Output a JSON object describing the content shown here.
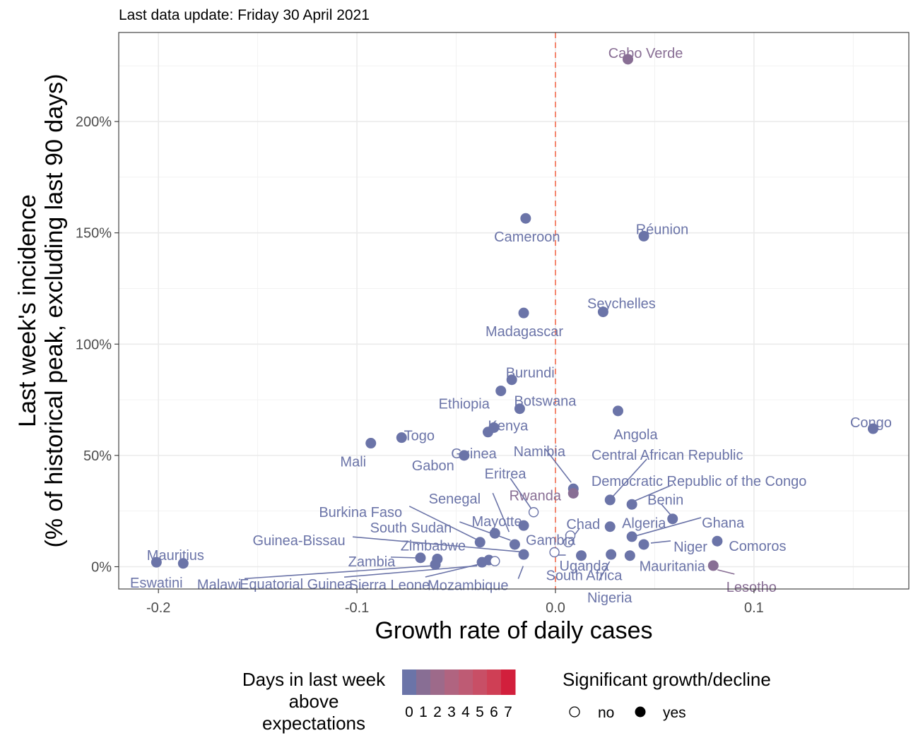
{
  "subtitle": "Last data update: Friday 30 April 2021",
  "chart_data": {
    "type": "scatter",
    "title": "",
    "xlabel": "Growth rate of daily cases",
    "ylabel_line1": "Last week's incidence",
    "ylabel_line2": "(% of historical peak, excluding last 90 days)",
    "xlim": [
      -0.22,
      0.178
    ],
    "ylim": [
      -0.1,
      2.4
    ],
    "x_ticks": [
      -0.2,
      -0.1,
      0.0,
      0.1
    ],
    "x_tick_labels": [
      "-0.2",
      "-0.1",
      "0.0",
      "0.1"
    ],
    "y_ticks": [
      0,
      0.5,
      1.0,
      1.5,
      2.0
    ],
    "y_tick_labels": [
      "0%",
      "50%",
      "100%",
      "150%",
      "200%"
    ],
    "reference_line_x": 0,
    "reference_line_color": "#f4866f",
    "grid": true,
    "colors": {
      "days0": "#6b74a8",
      "days1": "#886e94",
      "point_outline": "#6b74a8"
    },
    "points": [
      {
        "label": "Cabo Verde",
        "x": 0.0365,
        "y": 2.28,
        "days": 1,
        "significant": true
      },
      {
        "label": "Cameroon",
        "x": -0.015,
        "y": 1.565,
        "days": 0,
        "significant": true
      },
      {
        "label": "Réunion",
        "x": 0.0445,
        "y": 1.485,
        "days": 0,
        "significant": true
      },
      {
        "label": "Seychelles",
        "x": 0.024,
        "y": 1.145,
        "days": 0,
        "significant": true
      },
      {
        "label": "Madagascar",
        "x": -0.016,
        "y": 1.14,
        "days": 0,
        "significant": true
      },
      {
        "label": "Burundi",
        "x": -0.022,
        "y": 0.84,
        "days": 0,
        "significant": true
      },
      {
        "label": "Ethiopia",
        "x": -0.0275,
        "y": 0.79,
        "days": 0,
        "significant": true
      },
      {
        "label": "Botswana",
        "x": -0.018,
        "y": 0.71,
        "days": 0,
        "significant": true
      },
      {
        "label": "Angola",
        "x": 0.0315,
        "y": 0.7,
        "days": 0,
        "significant": true
      },
      {
        "label": "Congo",
        "x": 0.16,
        "y": 0.62,
        "days": 0,
        "significant": true
      },
      {
        "label": "Kenya",
        "x": -0.031,
        "y": 0.625,
        "days": 0,
        "significant": true
      },
      {
        "label": "Guinea",
        "x": -0.034,
        "y": 0.605,
        "days": 0,
        "significant": true
      },
      {
        "label": "Togo",
        "x": -0.0775,
        "y": 0.58,
        "days": 0,
        "significant": true
      },
      {
        "label": "Mali",
        "x": -0.093,
        "y": 0.555,
        "days": 0,
        "significant": true
      },
      {
        "label": "Gabon",
        "x": -0.046,
        "y": 0.5,
        "days": 0,
        "significant": true
      },
      {
        "label": "Namibia",
        "x": 0.009,
        "y": 0.35,
        "days": 0,
        "significant": true
      },
      {
        "label": "Rwanda",
        "x": 0.009,
        "y": 0.33,
        "days": 1,
        "significant": true
      },
      {
        "label": "Central African Republic",
        "x": 0.0275,
        "y": 0.3,
        "days": 0,
        "significant": true
      },
      {
        "label": "Democratic Republic of the Congo",
        "x": 0.0385,
        "y": 0.28,
        "days": 0,
        "significant": true
      },
      {
        "label": "Eritrea",
        "x": -0.011,
        "y": 0.245,
        "days": 0,
        "significant": false
      },
      {
        "label": "Benin",
        "x": 0.059,
        "y": 0.215,
        "days": 0,
        "significant": true
      },
      {
        "label": "Mayotte",
        "x": -0.016,
        "y": 0.185,
        "days": 0,
        "significant": true
      },
      {
        "label": "Algeria",
        "x": 0.0275,
        "y": 0.18,
        "days": 0,
        "significant": true
      },
      {
        "label": "Senegal",
        "x": -0.0305,
        "y": 0.15,
        "days": 0,
        "significant": true
      },
      {
        "label": "Gambia",
        "x": 0.0075,
        "y": 0.14,
        "days": 0,
        "significant": false
      },
      {
        "label": "Ghana",
        "x": 0.0385,
        "y": 0.135,
        "days": 0,
        "significant": true
      },
      {
        "label": "Chad",
        "x": 0.0065,
        "y": 0.11,
        "days": 0,
        "significant": false
      },
      {
        "label": "Comoros",
        "x": 0.0815,
        "y": 0.115,
        "days": 0,
        "significant": true
      },
      {
        "label": "Burkina Faso",
        "x": -0.038,
        "y": 0.11,
        "days": 0,
        "significant": true
      },
      {
        "label": "Niger",
        "x": 0.0445,
        "y": 0.1,
        "days": 0,
        "significant": true
      },
      {
        "label": "South Sudan",
        "x": -0.0205,
        "y": 0.1,
        "days": 0,
        "significant": true
      },
      {
        "label": "Uganda",
        "x": -0.0005,
        "y": 0.065,
        "days": 0,
        "significant": false
      },
      {
        "label": "Guinea-Bissau",
        "x": -0.016,
        "y": 0.055,
        "days": 0,
        "significant": true
      },
      {
        "label": "Nigeria",
        "x": 0.028,
        "y": 0.055,
        "days": 0,
        "significant": true
      },
      {
        "label": "Mauritania",
        "x": 0.0375,
        "y": 0.05,
        "days": 0,
        "significant": true
      },
      {
        "label": "South Africa",
        "x": 0.013,
        "y": 0.05,
        "days": 0,
        "significant": true
      },
      {
        "label": "Zambia",
        "x": -0.068,
        "y": 0.04,
        "days": 0,
        "significant": true
      },
      {
        "label": "Zimbabwe",
        "x": -0.0595,
        "y": 0.035,
        "days": 0,
        "significant": true
      },
      {
        "label": "Sierra Leone",
        "x": -0.0335,
        "y": 0.03,
        "days": 0,
        "significant": true
      },
      {
        "label": "Mozambique",
        "x": -0.0305,
        "y": 0.025,
        "days": 0,
        "significant": false
      },
      {
        "label": "Equatorial Guinea",
        "x": -0.037,
        "y": 0.02,
        "days": 0,
        "significant": true
      },
      {
        "label": "Mauritius",
        "x": -0.201,
        "y": 0.02,
        "days": 0,
        "significant": true
      },
      {
        "label": "Eswatini",
        "x": -0.1875,
        "y": 0.015,
        "days": 0,
        "significant": true
      },
      {
        "label": "Malawi",
        "x": -0.0605,
        "y": 0.01,
        "days": 0,
        "significant": true
      },
      {
        "label": "Lesotho",
        "x": 0.0795,
        "y": 0.005,
        "days": 1,
        "significant": true
      }
    ],
    "legend_color": {
      "title_lines": [
        "Days in last week",
        "above",
        "expectations"
      ],
      "labels": [
        "0",
        "1",
        "2",
        "3",
        "4",
        "5",
        "6",
        "7"
      ],
      "colors": [
        "#6b74a8",
        "#886e94",
        "#9d6a8a",
        "#b06480",
        "#be5b74",
        "#c84f66",
        "#cf3f55",
        "#d21f3c"
      ]
    },
    "legend_shape": {
      "title": "Significant growth/decline",
      "items": [
        {
          "label": "no",
          "filled": false
        },
        {
          "label": "yes",
          "filled": true
        }
      ]
    }
  }
}
